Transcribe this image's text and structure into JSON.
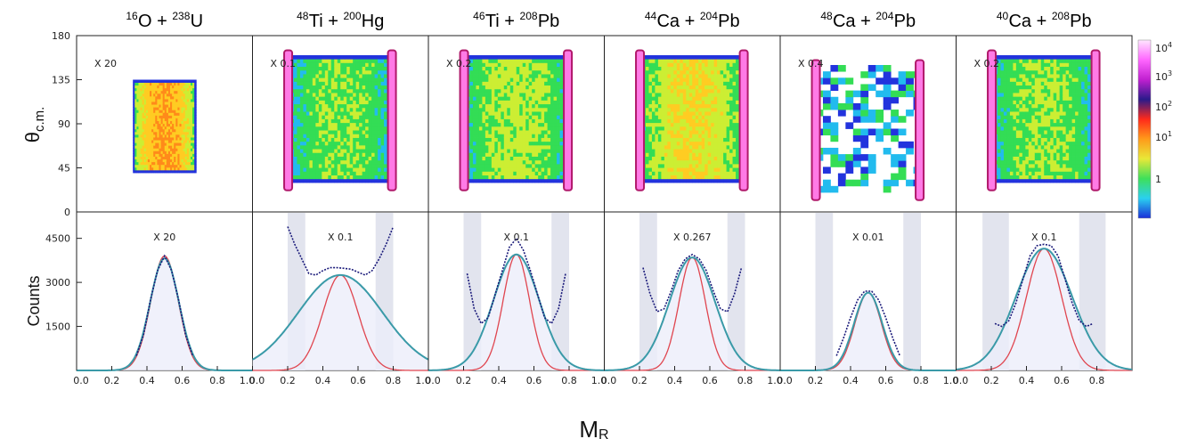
{
  "figure": {
    "x_label": "M",
    "x_label_sub": "R",
    "top_y_label": "θ",
    "top_y_label_sub": "c.m.",
    "bottom_y_label": "Counts"
  },
  "colors": {
    "gauss_narrow": "#e0454f",
    "gauss_wide": "#3a9aa8",
    "data_points": "#1a1a7a",
    "shade": "#e2e4ee",
    "hist_fill": "#eceefa"
  },
  "colorbar": {
    "scale": "log",
    "labels": [
      {
        "base": "10",
        "exp": "4"
      },
      {
        "base": "10",
        "exp": "3"
      },
      {
        "base": "10",
        "exp": "2"
      },
      {
        "base": "10",
        "exp": "1"
      },
      {
        "base": "1",
        "exp": ""
      }
    ],
    "gradient_bottom_to_top": [
      "#1a2fd8",
      "#2ad0f0",
      "#3ee05a",
      "#e8e838",
      "#ff9a1a",
      "#ff2a1a",
      "#2a1a8a",
      "#c020d0",
      "#ff66ff",
      "#ffe6ff"
    ]
  },
  "chart_data": [
    {
      "type": "heatmap",
      "title": {
        "sup1": "16",
        "el1": "O",
        "sup2": "238",
        "el2": "U"
      },
      "scale_label": "X 20",
      "xlim": [
        0,
        1
      ],
      "ylim": [
        0,
        180
      ],
      "yticks": [
        0,
        45,
        90,
        135,
        180
      ],
      "mass_range": [
        0.32,
        0.68
      ],
      "angle_range": [
        40,
        135
      ],
      "peak_level": 0.78,
      "elastic_bands": false
    },
    {
      "type": "heatmap",
      "title": {
        "sup1": "48",
        "el1": "Ti",
        "sup2": "200",
        "el2": "Hg"
      },
      "scale_label": "X 0.1",
      "xlim": [
        0,
        1
      ],
      "ylim": [
        0,
        180
      ],
      "mass_range": [
        0.2,
        0.8
      ],
      "angle_range": [
        30,
        160
      ],
      "peak_level": 0.42,
      "elastic_bands": true
    },
    {
      "type": "heatmap",
      "title": {
        "sup1": "46",
        "el1": "Ti",
        "sup2": "208",
        "el2": "Pb"
      },
      "scale_label": "X 0.2",
      "xlim": [
        0,
        1
      ],
      "ylim": [
        0,
        180
      ],
      "mass_range": [
        0.2,
        0.8
      ],
      "angle_range": [
        30,
        160
      ],
      "peak_level": 0.48,
      "elastic_bands": true
    },
    {
      "type": "heatmap",
      "title": {
        "sup1": "44",
        "el1": "Ca",
        "sup2": "204",
        "el2": "Pb"
      },
      "scale_label": "",
      "xlim": [
        0,
        1
      ],
      "ylim": [
        0,
        180
      ],
      "mass_range": [
        0.2,
        0.8
      ],
      "angle_range": [
        30,
        160
      ],
      "peak_level": 0.6,
      "elastic_bands": true
    },
    {
      "type": "heatmap",
      "title": {
        "sup1": "48",
        "el1": "Ca",
        "sup2": "204",
        "el2": "Pb"
      },
      "scale_label": "X 0.4",
      "xlim": [
        0,
        1
      ],
      "ylim": [
        0,
        180
      ],
      "mass_range": [
        0.2,
        0.8
      ],
      "angle_range": [
        20,
        150
      ],
      "peak_level": 0.2,
      "elastic_bands": true,
      "sparse": true
    },
    {
      "type": "heatmap",
      "title": {
        "sup1": "40",
        "el1": "Ca",
        "sup2": "208",
        "el2": "Pb"
      },
      "scale_label": "X 0.2",
      "xlim": [
        0,
        1
      ],
      "ylim": [
        0,
        180
      ],
      "mass_range": [
        0.2,
        0.8
      ],
      "angle_range": [
        30,
        160
      ],
      "peak_level": 0.44,
      "elastic_bands": true
    },
    {
      "type": "line",
      "scale_label": "X 20",
      "xlabel": "M_R",
      "ylabel": "Counts",
      "xlim": [
        0,
        1
      ],
      "ylim": [
        0,
        5400
      ],
      "yticks": [
        1500,
        3000,
        4500
      ],
      "xtick_labels": [
        "0.0",
        "0.2",
        "0.4",
        "0.6",
        "0.8",
        "1.0"
      ],
      "series": [
        {
          "kind": "gauss_narrow",
          "center": 0.5,
          "sigma": 0.078,
          "amplitude": 3900
        },
        {
          "kind": "gauss_wide",
          "center": 0.5,
          "sigma": 0.082,
          "amplitude": 3820
        },
        {
          "kind": "data_points",
          "points": [
            [
              0.34,
              500
            ],
            [
              0.38,
              1200
            ],
            [
              0.42,
              2400
            ],
            [
              0.46,
              3400
            ],
            [
              0.5,
              3900
            ],
            [
              0.54,
              3400
            ],
            [
              0.58,
              2400
            ],
            [
              0.62,
              1200
            ],
            [
              0.66,
              500
            ]
          ]
        }
      ],
      "shaded_regions": []
    },
    {
      "type": "line",
      "scale_label": "X 0.1",
      "xlim": [
        0,
        1
      ],
      "ylim": [
        0,
        5400
      ],
      "xtick_labels": [
        "0.0",
        "0.2",
        "0.4",
        "0.6",
        "0.8",
        "1.0"
      ],
      "series": [
        {
          "kind": "gauss_narrow",
          "center": 0.5,
          "sigma": 0.1,
          "amplitude": 3250
        },
        {
          "kind": "gauss_wide",
          "center": 0.5,
          "sigma": 0.24,
          "amplitude": 3250
        },
        {
          "kind": "data_points",
          "points": [
            [
              0.2,
              4900
            ],
            [
              0.24,
              4300
            ],
            [
              0.28,
              3800
            ],
            [
              0.32,
              3300
            ],
            [
              0.36,
              3250
            ],
            [
              0.4,
              3400
            ],
            [
              0.44,
              3500
            ],
            [
              0.48,
              3500
            ],
            [
              0.52,
              3480
            ],
            [
              0.56,
              3450
            ],
            [
              0.6,
              3350
            ],
            [
              0.64,
              3250
            ],
            [
              0.68,
              3400
            ],
            [
              0.72,
              3800
            ],
            [
              0.76,
              4300
            ],
            [
              0.8,
              4900
            ]
          ]
        }
      ],
      "shaded_regions": [
        [
          0.2,
          0.3
        ],
        [
          0.7,
          0.8
        ]
      ]
    },
    {
      "type": "line",
      "scale_label": "X 0.1",
      "xlim": [
        0,
        1
      ],
      "ylim": [
        0,
        5400
      ],
      "xtick_labels": [
        "0.0",
        "0.2",
        "0.4",
        "0.6",
        "0.8",
        "1.0"
      ],
      "series": [
        {
          "kind": "gauss_narrow",
          "center": 0.5,
          "sigma": 0.075,
          "amplitude": 3950
        },
        {
          "kind": "gauss_wide",
          "center": 0.5,
          "sigma": 0.13,
          "amplitude": 3950
        },
        {
          "kind": "data_points",
          "points": [
            [
              0.22,
              3300
            ],
            [
              0.26,
              2100
            ],
            [
              0.3,
              1600
            ],
            [
              0.34,
              1800
            ],
            [
              0.38,
              2600
            ],
            [
              0.42,
              3400
            ],
            [
              0.46,
              4200
            ],
            [
              0.5,
              4500
            ],
            [
              0.54,
              4100
            ],
            [
              0.58,
              3400
            ],
            [
              0.62,
              2600
            ],
            [
              0.66,
              1800
            ],
            [
              0.7,
              1600
            ],
            [
              0.74,
              2100
            ],
            [
              0.78,
              3300
            ]
          ]
        }
      ],
      "shaded_regions": [
        [
          0.2,
          0.3
        ],
        [
          0.7,
          0.8
        ]
      ]
    },
    {
      "type": "line",
      "scale_label": "X 0.267",
      "xlim": [
        0,
        1
      ],
      "ylim": [
        0,
        5400
      ],
      "xtick_labels": [
        "0.0",
        "0.2",
        "0.4",
        "0.6",
        "0.8",
        "1.0"
      ],
      "series": [
        {
          "kind": "gauss_narrow",
          "center": 0.5,
          "sigma": 0.075,
          "amplitude": 3850
        },
        {
          "kind": "gauss_wide",
          "center": 0.5,
          "sigma": 0.13,
          "amplitude": 3850
        },
        {
          "kind": "data_points",
          "points": [
            [
              0.22,
              3500
            ],
            [
              0.26,
              2600
            ],
            [
              0.3,
              2000
            ],
            [
              0.34,
              2100
            ],
            [
              0.38,
              2700
            ],
            [
              0.42,
              3400
            ],
            [
              0.46,
              3800
            ],
            [
              0.5,
              3950
            ],
            [
              0.54,
              3800
            ],
            [
              0.58,
              3400
            ],
            [
              0.62,
              2700
            ],
            [
              0.66,
              2100
            ],
            [
              0.7,
              2000
            ],
            [
              0.74,
              2600
            ],
            [
              0.78,
              3500
            ]
          ]
        }
      ],
      "shaded_regions": [
        [
          0.2,
          0.3
        ],
        [
          0.7,
          0.8
        ]
      ]
    },
    {
      "type": "line",
      "scale_label": "X 0.01",
      "xlim": [
        0,
        1
      ],
      "ylim": [
        0,
        5400
      ],
      "xtick_labels": [
        "0.0",
        "0.2",
        "0.4",
        "0.6",
        "0.8",
        "1.0"
      ],
      "series": [
        {
          "kind": "gauss_narrow",
          "center": 0.5,
          "sigma": 0.075,
          "amplitude": 2650
        },
        {
          "kind": "gauss_wide",
          "center": 0.5,
          "sigma": 0.08,
          "amplitude": 2650
        },
        {
          "kind": "data_points",
          "points": [
            [
              0.32,
              500
            ],
            [
              0.36,
              1100
            ],
            [
              0.4,
              1800
            ],
            [
              0.44,
              2400
            ],
            [
              0.48,
              2700
            ],
            [
              0.52,
              2700
            ],
            [
              0.56,
              2400
            ],
            [
              0.6,
              1800
            ],
            [
              0.64,
              1100
            ],
            [
              0.68,
              500
            ]
          ]
        }
      ],
      "shaded_regions": [
        [
          0.2,
          0.3
        ],
        [
          0.7,
          0.8
        ]
      ]
    },
    {
      "type": "line",
      "scale_label": "X 0.1",
      "xlim": [
        0,
        1
      ],
      "ylim": [
        0,
        5400
      ],
      "xtick_labels": [
        "0.0",
        "0.2",
        "0.4",
        "0.6",
        "0.8"
      ],
      "series": [
        {
          "kind": "gauss_narrow",
          "center": 0.5,
          "sigma": 0.1,
          "amplitude": 4150
        },
        {
          "kind": "gauss_wide",
          "center": 0.5,
          "sigma": 0.16,
          "amplitude": 4150
        },
        {
          "kind": "data_points",
          "points": [
            [
              0.22,
              1600
            ],
            [
              0.26,
              1500
            ],
            [
              0.3,
              1700
            ],
            [
              0.34,
              2300
            ],
            [
              0.38,
              3100
            ],
            [
              0.42,
              3900
            ],
            [
              0.46,
              4250
            ],
            [
              0.5,
              4300
            ],
            [
              0.54,
              4250
            ],
            [
              0.58,
              3900
            ],
            [
              0.62,
              3100
            ],
            [
              0.66,
              2300
            ],
            [
              0.7,
              1700
            ],
            [
              0.74,
              1500
            ],
            [
              0.78,
              1600
            ]
          ]
        }
      ],
      "shaded_regions": [
        [
          0.15,
          0.3
        ],
        [
          0.7,
          0.85
        ]
      ]
    }
  ]
}
